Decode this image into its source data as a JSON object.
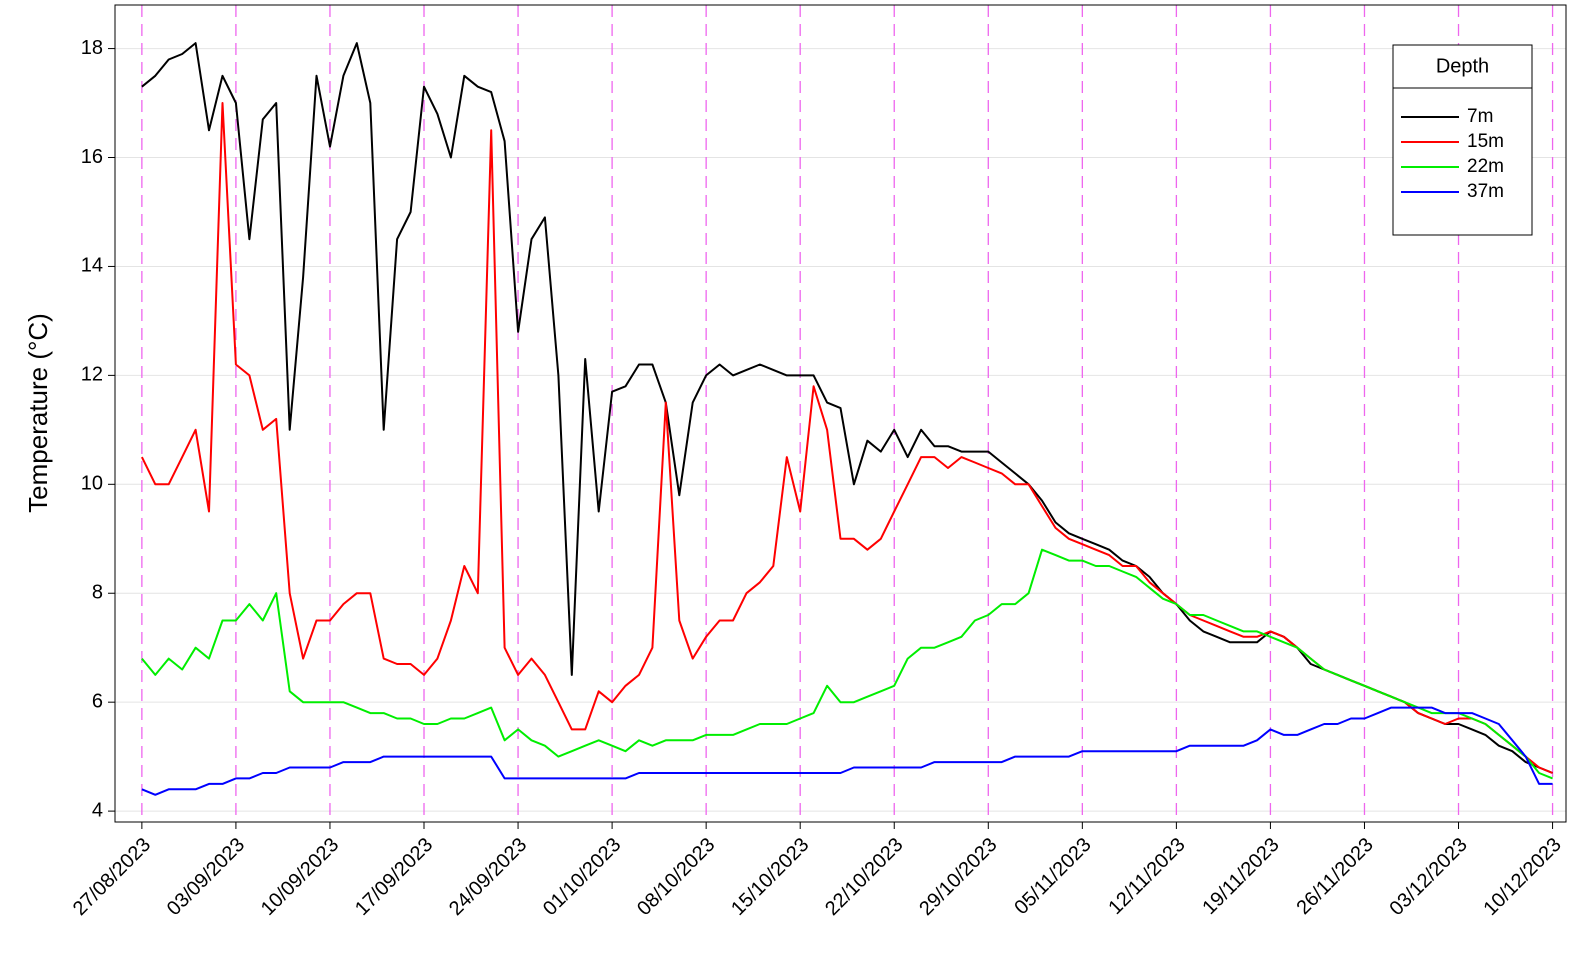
{
  "chart_data": {
    "type": "line",
    "y_label": "Temperature  (°C)",
    "legend_title": "Depth",
    "legend": "top-right",
    "grid": true,
    "ylim": [
      3.8,
      18.8
    ],
    "yticks": [
      4,
      6,
      8,
      10,
      12,
      14,
      16,
      18
    ],
    "xlim": [
      "25/08/2023",
      "11/12/2023"
    ],
    "xticks": [
      "27/08/2023",
      "03/09/2023",
      "10/09/2023",
      "17/09/2023",
      "24/09/2023",
      "01/10/2023",
      "08/10/2023",
      "15/10/2023",
      "22/10/2023",
      "29/10/2023",
      "05/11/2023",
      "12/11/2023",
      "19/11/2023",
      "26/11/2023",
      "03/12/2023",
      "10/12/2023"
    ],
    "x": [
      "27/08/2023",
      "28/08/2023",
      "29/08/2023",
      "30/08/2023",
      "31/08/2023",
      "01/09/2023",
      "02/09/2023",
      "03/09/2023",
      "04/09/2023",
      "05/09/2023",
      "06/09/2023",
      "07/09/2023",
      "08/09/2023",
      "09/09/2023",
      "10/09/2023",
      "11/09/2023",
      "12/09/2023",
      "13/09/2023",
      "14/09/2023",
      "15/09/2023",
      "16/09/2023",
      "17/09/2023",
      "18/09/2023",
      "19/09/2023",
      "20/09/2023",
      "21/09/2023",
      "22/09/2023",
      "23/09/2023",
      "24/09/2023",
      "25/09/2023",
      "26/09/2023",
      "27/09/2023",
      "28/09/2023",
      "29/09/2023",
      "30/09/2023",
      "01/10/2023",
      "02/10/2023",
      "03/10/2023",
      "04/10/2023",
      "05/10/2023",
      "06/10/2023",
      "07/10/2023",
      "08/10/2023",
      "09/10/2023",
      "10/10/2023",
      "11/10/2023",
      "12/10/2023",
      "13/10/2023",
      "14/10/2023",
      "15/10/2023",
      "16/10/2023",
      "17/10/2023",
      "18/10/2023",
      "19/10/2023",
      "20/10/2023",
      "21/10/2023",
      "22/10/2023",
      "23/10/2023",
      "24/10/2023",
      "25/10/2023",
      "26/10/2023",
      "27/10/2023",
      "28/10/2023",
      "29/10/2023",
      "30/10/2023",
      "31/10/2023",
      "01/11/2023",
      "02/11/2023",
      "03/11/2023",
      "04/11/2023",
      "05/11/2023",
      "06/11/2023",
      "07/11/2023",
      "08/11/2023",
      "09/11/2023",
      "10/11/2023",
      "11/11/2023",
      "12/11/2023",
      "13/11/2023",
      "14/11/2023",
      "15/11/2023",
      "16/11/2023",
      "17/11/2023",
      "18/11/2023",
      "19/11/2023",
      "20/11/2023",
      "21/11/2023",
      "22/11/2023",
      "23/11/2023",
      "24/11/2023",
      "25/11/2023",
      "26/11/2023",
      "27/11/2023",
      "28/11/2023",
      "29/11/2023",
      "30/11/2023",
      "01/12/2023",
      "02/12/2023",
      "03/12/2023",
      "04/12/2023",
      "05/12/2023",
      "06/12/2023",
      "07/12/2023",
      "08/12/2023",
      "09/12/2023",
      "10/12/2023"
    ],
    "series": [
      {
        "name": "7m",
        "color": "#000000",
        "values": [
          17.3,
          17.5,
          17.8,
          17.9,
          18.1,
          16.5,
          17.5,
          17.0,
          14.5,
          16.7,
          17.0,
          11.0,
          13.8,
          17.5,
          16.2,
          17.5,
          18.1,
          17.0,
          11.0,
          14.5,
          15.0,
          17.3,
          16.8,
          16.0,
          17.5,
          17.3,
          17.2,
          16.3,
          12.8,
          14.5,
          14.9,
          12.0,
          6.5,
          12.3,
          9.5,
          11.7,
          11.8,
          12.2,
          12.2,
          11.5,
          9.8,
          11.5,
          12.0,
          12.2,
          12.0,
          12.1,
          12.2,
          12.1,
          12.0,
          12.0,
          12.0,
          11.5,
          11.4,
          10.0,
          10.8,
          10.6,
          11.0,
          10.5,
          11.0,
          10.7,
          10.7,
          10.6,
          10.6,
          10.6,
          10.4,
          10.2,
          10.0,
          9.7,
          9.3,
          9.1,
          9.0,
          8.9,
          8.8,
          8.6,
          8.5,
          8.3,
          8.0,
          7.8,
          7.5,
          7.3,
          7.2,
          7.1,
          7.1,
          7.1,
          7.3,
          7.2,
          7.0,
          6.7,
          6.6,
          6.5,
          6.4,
          6.3,
          6.2,
          6.1,
          6.0,
          5.8,
          5.7,
          5.6,
          5.6,
          5.5,
          5.4,
          5.2,
          5.1,
          4.9,
          4.8,
          4.7
        ]
      },
      {
        "name": "15m",
        "color": "#ff0000",
        "values": [
          10.5,
          10.0,
          10.0,
          10.5,
          11.0,
          9.5,
          17.0,
          12.2,
          12.0,
          11.0,
          11.2,
          8.0,
          6.8,
          7.5,
          7.5,
          7.8,
          8.0,
          8.0,
          6.8,
          6.7,
          6.7,
          6.5,
          6.8,
          7.5,
          8.5,
          8.0,
          16.5,
          7.0,
          6.5,
          6.8,
          6.5,
          6.0,
          5.5,
          5.5,
          6.2,
          6.0,
          6.3,
          6.5,
          7.0,
          11.5,
          7.5,
          6.8,
          7.2,
          7.5,
          7.5,
          8.0,
          8.2,
          8.5,
          10.5,
          9.5,
          11.8,
          11.0,
          9.0,
          9.0,
          8.8,
          9.0,
          9.5,
          10.0,
          10.5,
          10.5,
          10.3,
          10.5,
          10.4,
          10.3,
          10.2,
          10.0,
          10.0,
          9.6,
          9.2,
          9.0,
          8.9,
          8.8,
          8.7,
          8.5,
          8.5,
          8.2,
          8.0,
          7.8,
          7.6,
          7.5,
          7.4,
          7.3,
          7.2,
          7.2,
          7.3,
          7.2,
          7.0,
          6.8,
          6.6,
          6.5,
          6.4,
          6.3,
          6.2,
          6.1,
          6.0,
          5.8,
          5.7,
          5.6,
          5.7,
          5.7,
          5.6,
          5.4,
          5.2,
          5.0,
          4.8,
          4.7
        ]
      },
      {
        "name": "22m",
        "color": "#00ee00",
        "values": [
          6.8,
          6.5,
          6.8,
          6.6,
          7.0,
          6.8,
          7.5,
          7.5,
          7.8,
          7.5,
          8.0,
          6.2,
          6.0,
          6.0,
          6.0,
          6.0,
          5.9,
          5.8,
          5.8,
          5.7,
          5.7,
          5.6,
          5.6,
          5.7,
          5.7,
          5.8,
          5.9,
          5.3,
          5.5,
          5.3,
          5.2,
          5.0,
          5.1,
          5.2,
          5.3,
          5.2,
          5.1,
          5.3,
          5.2,
          5.3,
          5.3,
          5.3,
          5.4,
          5.4,
          5.4,
          5.5,
          5.6,
          5.6,
          5.6,
          5.7,
          5.8,
          6.3,
          6.0,
          6.0,
          6.1,
          6.2,
          6.3,
          6.8,
          7.0,
          7.0,
          7.1,
          7.2,
          7.5,
          7.6,
          7.8,
          7.8,
          8.0,
          8.8,
          8.7,
          8.6,
          8.6,
          8.5,
          8.5,
          8.4,
          8.3,
          8.1,
          7.9,
          7.8,
          7.6,
          7.6,
          7.5,
          7.4,
          7.3,
          7.3,
          7.2,
          7.1,
          7.0,
          6.8,
          6.6,
          6.5,
          6.4,
          6.3,
          6.2,
          6.1,
          6.0,
          5.9,
          5.8,
          5.8,
          5.8,
          5.7,
          5.6,
          5.4,
          5.2,
          5.0,
          4.7,
          4.6
        ]
      },
      {
        "name": "37m",
        "color": "#0000ff",
        "values": [
          4.4,
          4.3,
          4.4,
          4.4,
          4.4,
          4.5,
          4.5,
          4.6,
          4.6,
          4.7,
          4.7,
          4.8,
          4.8,
          4.8,
          4.8,
          4.9,
          4.9,
          4.9,
          5.0,
          5.0,
          5.0,
          5.0,
          5.0,
          5.0,
          5.0,
          5.0,
          5.0,
          4.6,
          4.6,
          4.6,
          4.6,
          4.6,
          4.6,
          4.6,
          4.6,
          4.6,
          4.6,
          4.7,
          4.7,
          4.7,
          4.7,
          4.7,
          4.7,
          4.7,
          4.7,
          4.7,
          4.7,
          4.7,
          4.7,
          4.7,
          4.7,
          4.7,
          4.7,
          4.8,
          4.8,
          4.8,
          4.8,
          4.8,
          4.8,
          4.9,
          4.9,
          4.9,
          4.9,
          4.9,
          4.9,
          5.0,
          5.0,
          5.0,
          5.0,
          5.0,
          5.1,
          5.1,
          5.1,
          5.1,
          5.1,
          5.1,
          5.1,
          5.1,
          5.2,
          5.2,
          5.2,
          5.2,
          5.2,
          5.3,
          5.5,
          5.4,
          5.4,
          5.5,
          5.6,
          5.6,
          5.7,
          5.7,
          5.8,
          5.9,
          5.9,
          5.9,
          5.9,
          5.8,
          5.8,
          5.8,
          5.7,
          5.6,
          5.3,
          5.0,
          4.5,
          4.5
        ]
      }
    ]
  }
}
